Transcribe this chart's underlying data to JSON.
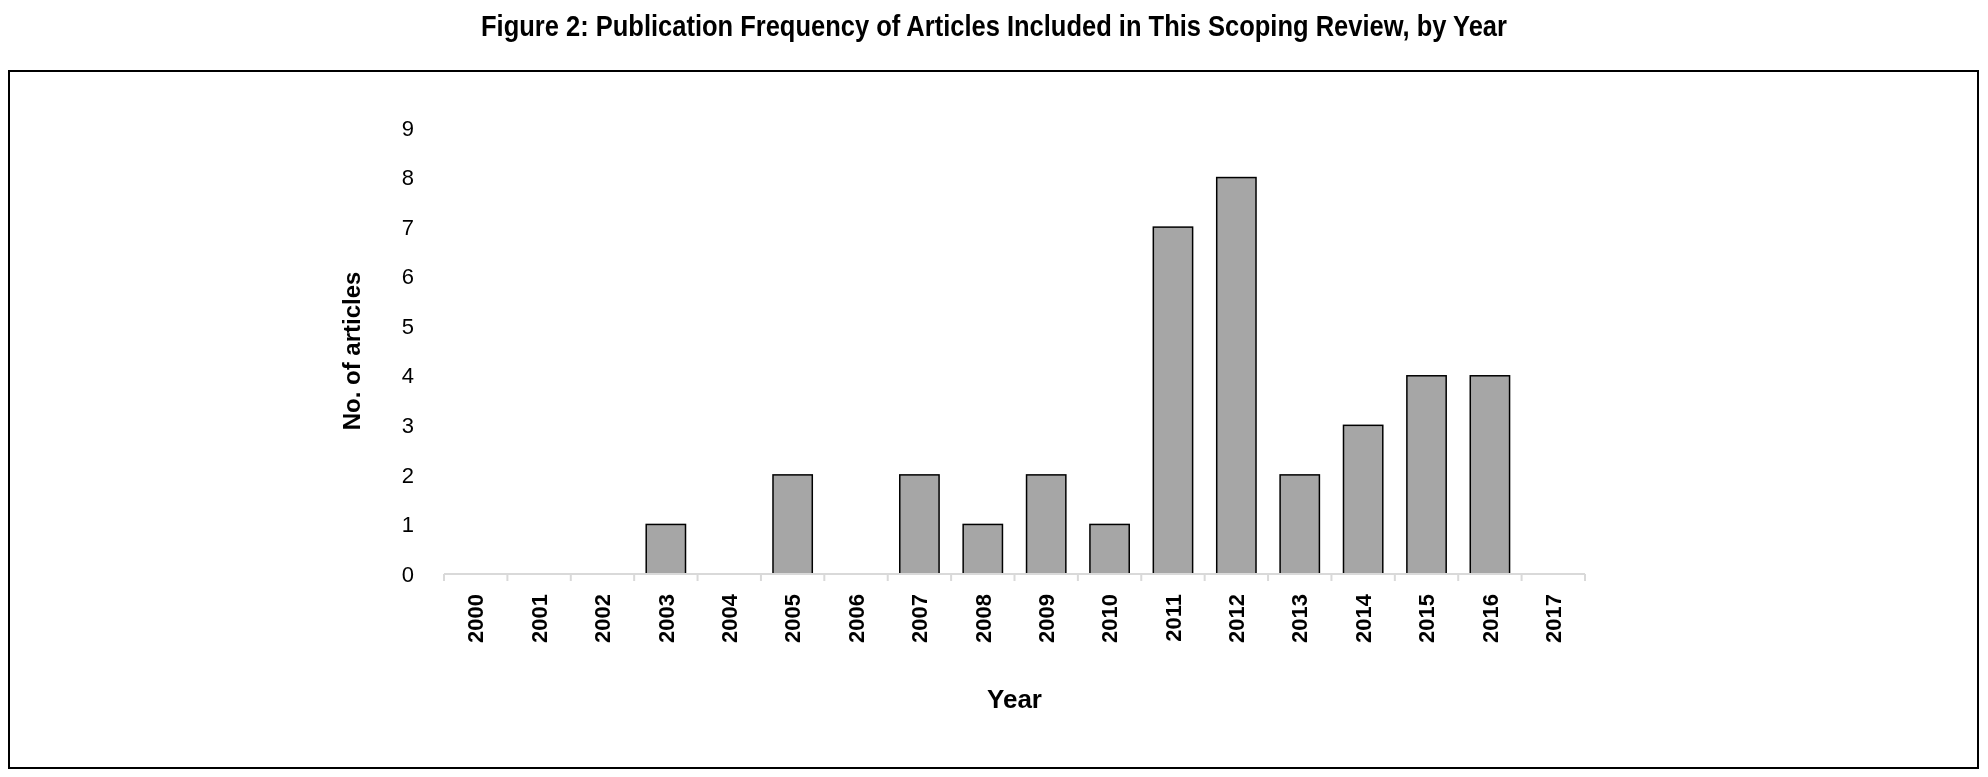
{
  "chart_data": {
    "type": "bar",
    "title": "Figure 2: Publication Frequency of Articles Included in This Scoping Review, by Year",
    "xlabel": "Year",
    "ylabel": "No. of articles",
    "categories": [
      "2000",
      "2001",
      "2002",
      "2003",
      "2004",
      "2005",
      "2006",
      "2007",
      "2008",
      "2009",
      "2010",
      "2011",
      "2012",
      "2013",
      "2014",
      "2015",
      "2016",
      "2017"
    ],
    "values": [
      0,
      0,
      0,
      1,
      0,
      2,
      0,
      2,
      1,
      2,
      1,
      7,
      8,
      2,
      3,
      4,
      4,
      0
    ],
    "color": "#a6a6a6",
    "ylim": [
      0,
      9
    ],
    "yticks": [
      0,
      1,
      2,
      3,
      4,
      5,
      6,
      7,
      8,
      9
    ],
    "grid": false
  }
}
